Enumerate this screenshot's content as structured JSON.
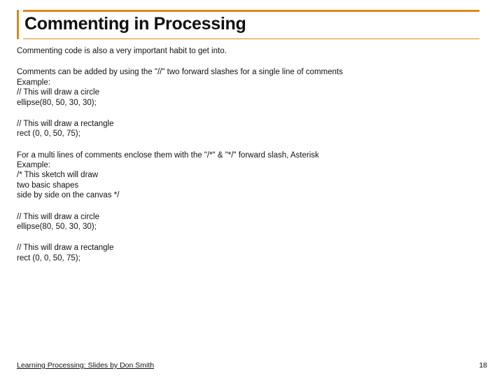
{
  "accent_color": "#d88b1a",
  "text_color": "#111111",
  "background_color": "#ffffff",
  "title": "Commenting in Processing",
  "title_fontsize": 25,
  "body_fontsize": 11.5,
  "paragraphs": [
    {
      "lines": [
        "Commenting code is also a very important habit to get into."
      ]
    },
    {
      "lines": [
        "Comments can be added by using the \"//\" two forward slashes for a single line of comments",
        "Example:",
        "// This will draw a circle",
        "ellipse(80, 50, 30, 30);"
      ]
    },
    {
      "lines": [
        "// This will draw a rectangle",
        "rect (0, 0, 50, 75);"
      ]
    },
    {
      "lines": [
        "For a multi lines of comments enclose them with the \"/*\"  & \"*/\" forward slash,  Asterisk",
        "Example:",
        "/* This sketch will draw",
        "two basic shapes",
        "side by side on the canvas */"
      ]
    },
    {
      "lines": [
        "// This will draw a circle",
        "ellipse(80, 50, 30, 30);"
      ]
    },
    {
      "lines": [
        "// This will draw a rectangle",
        "rect (0, 0, 50, 75);"
      ]
    }
  ],
  "footer_text": "Learning Processing:  Slides by Don Smith",
  "page_number": "18"
}
